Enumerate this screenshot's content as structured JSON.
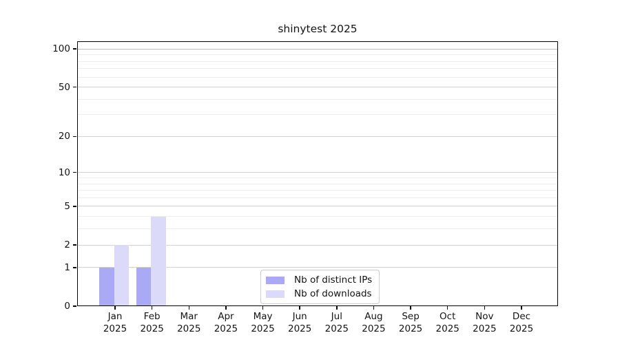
{
  "chart_data": {
    "type": "bar",
    "title": "shinytest 2025",
    "x_axis": {
      "categories": [
        "Jan",
        "Feb",
        "Mar",
        "Apr",
        "May",
        "Jun",
        "Jul",
        "Aug",
        "Sep",
        "Oct",
        "Nov",
        "Dec"
      ],
      "year_line": "2025"
    },
    "y_axis": {
      "scale": "log1p",
      "major_ticks": [
        0,
        1,
        2,
        5,
        10,
        20,
        50,
        100
      ],
      "minor_gridlines": [
        3,
        4,
        6,
        7,
        8,
        9,
        30,
        40,
        60,
        70,
        80,
        90
      ],
      "ylim": [
        0,
        115
      ],
      "grid": true
    },
    "series": [
      {
        "id": "distinct-ips",
        "name": "Nb of distinct IPs",
        "color": "#a9a9f6",
        "values": [
          1,
          1,
          0,
          0,
          0,
          0,
          0,
          0,
          0,
          0,
          0,
          0
        ]
      },
      {
        "id": "downloads",
        "name": "Nb of downloads",
        "color": "#dbdbf9",
        "values": [
          2,
          4,
          0,
          0,
          0,
          0,
          0,
          0,
          0,
          0,
          0,
          0
        ]
      }
    ],
    "legend": {
      "position": "lower-center",
      "entries": [
        "Nb of distinct IPs",
        "Nb of downloads"
      ]
    },
    "colors": {
      "grid_major": "#d2d2d2",
      "grid_minor": "#eeeeee",
      "grid_emphasis": "#bcbcbc",
      "axis": "#000000",
      "text": "#141414",
      "legend_border": "#cccccc",
      "background": "#ffffff"
    }
  }
}
